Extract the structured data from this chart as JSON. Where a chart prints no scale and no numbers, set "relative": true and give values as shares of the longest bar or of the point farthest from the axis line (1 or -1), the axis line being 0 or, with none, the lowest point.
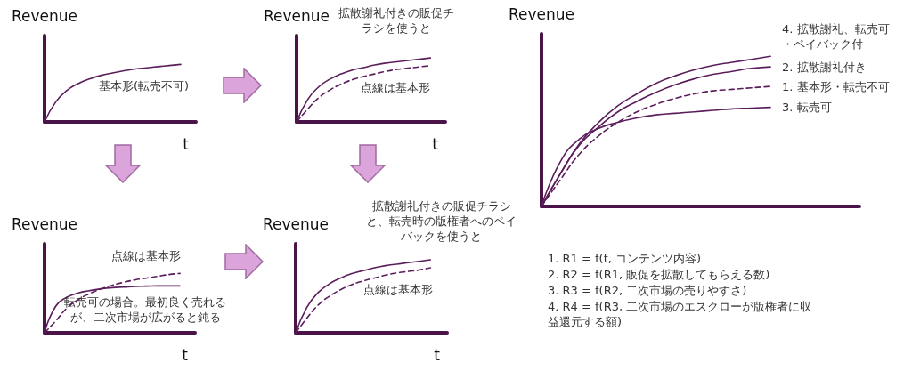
{
  "chart_data": [
    {
      "type": "line",
      "ylabel": "Revenue",
      "xlabel": "t",
      "relative": true,
      "categories": [
        null,
        null,
        null,
        null,
        null,
        null,
        null,
        null,
        null,
        null,
        null,
        null,
        null
      ],
      "series": [
        {
          "name": "基本形(転売不可)",
          "color": "#5b1e5b",
          "values": [
            0,
            0.35,
            0.55,
            0.67,
            0.75,
            0.81,
            0.85,
            0.89,
            0.92,
            0.94,
            0.96,
            0.98,
            1.0
          ]
        }
      ]
    },
    {
      "type": "line",
      "ylabel": "Revenue",
      "xlabel": "t",
      "relative": true,
      "categories": [
        null,
        null,
        null,
        null,
        null,
        null,
        null,
        null,
        null,
        null,
        null,
        null,
        null
      ],
      "annotations": [
        "拡散謝礼付きの販促チラシを使うと",
        "点線は基本形"
      ],
      "series": [
        {
          "color": "#5b1e5b",
          "values": [
            0,
            0.35,
            0.55,
            0.67,
            0.75,
            0.81,
            0.85,
            0.89,
            0.92,
            0.94,
            0.96,
            0.98,
            1.0
          ]
        },
        {
          "color": "#5b1e5b",
          "line_style": "dashed",
          "values": [
            0,
            0.2,
            0.38,
            0.5,
            0.59,
            0.66,
            0.71,
            0.75,
            0.79,
            0.82,
            0.84,
            0.86,
            0.88
          ]
        }
      ]
    },
    {
      "type": "line",
      "ylabel": "Revenue",
      "relative": true,
      "categories": [
        null,
        null,
        null,
        null,
        null,
        null,
        null,
        null,
        null,
        null,
        null,
        null,
        null
      ],
      "annotations": [
        "1.   R1 = f(t, コンテンツ内容)",
        "2.   R2 = f(R1, 販促を拡散してもらえる数)",
        "3.   R3 = f(R2, 二次市場の売りやすさ)",
        "4.   R4 = f(R3, 二次市場のエスクローが版権者に収益還元する額)"
      ],
      "series": [
        {
          "name": "4. 拡散謝礼、転売可・ペイバック付",
          "color": "#5b1e5b",
          "values": [
            0,
            0.22,
            0.42,
            0.56,
            0.67,
            0.75,
            0.82,
            0.87,
            0.91,
            0.94,
            0.96,
            0.98,
            1.0
          ]
        },
        {
          "name": "2. 拡散謝礼付き",
          "color": "#5b1e5b",
          "values": [
            0,
            0.22,
            0.41,
            0.53,
            0.63,
            0.7,
            0.76,
            0.81,
            0.85,
            0.88,
            0.9,
            0.92,
            0.93
          ]
        },
        {
          "name": "1. 基本形・転売不可",
          "color": "#5b1e5b",
          "line_style": "dashed",
          "values": [
            0,
            0.18,
            0.35,
            0.47,
            0.56,
            0.63,
            0.68,
            0.72,
            0.75,
            0.77,
            0.78,
            0.79,
            0.8
          ]
        },
        {
          "name": "3. 転売可",
          "color": "#5b1e5b",
          "values": [
            0,
            0.3,
            0.45,
            0.52,
            0.56,
            0.59,
            0.61,
            0.62,
            0.63,
            0.64,
            0.65,
            0.655,
            0.66
          ]
        }
      ]
    },
    {
      "type": "line",
      "ylabel": "Revenue",
      "xlabel": "t",
      "relative": true,
      "categories": [
        null,
        null,
        null,
        null,
        null,
        null,
        null,
        null,
        null,
        null,
        null,
        null,
        null
      ],
      "annotations": [
        "点線は基本形",
        "転売可の場合。最初良く売れるが、二次市場が広がると鈍る"
      ],
      "series": [
        {
          "color": "#5b1e5b",
          "values": [
            0,
            0.45,
            0.6,
            0.67,
            0.71,
            0.74,
            0.76,
            0.77,
            0.78,
            0.785,
            0.79,
            0.79,
            0.79
          ]
        },
        {
          "color": "#5b1e5b",
          "line_style": "dashed",
          "values": [
            0,
            0.2,
            0.42,
            0.56,
            0.66,
            0.74,
            0.8,
            0.85,
            0.89,
            0.92,
            0.95,
            0.98,
            1.0
          ]
        }
      ]
    },
    {
      "type": "line",
      "ylabel": "Revenue",
      "xlabel": "t",
      "relative": true,
      "categories": [
        null,
        null,
        null,
        null,
        null,
        null,
        null,
        null,
        null,
        null,
        null,
        null,
        null
      ],
      "annotations": [
        "拡散謝礼付きの販促チラシと、転売時の版権者へのペイバックを使うと",
        "点線は基本形"
      ],
      "series": [
        {
          "color": "#5b1e5b",
          "values": [
            0,
            0.35,
            0.55,
            0.67,
            0.75,
            0.81,
            0.85,
            0.89,
            0.92,
            0.94,
            0.96,
            0.98,
            1.0
          ]
        },
        {
          "color": "#5b1e5b",
          "line_style": "dashed",
          "values": [
            0,
            0.2,
            0.38,
            0.5,
            0.59,
            0.66,
            0.71,
            0.75,
            0.79,
            0.82,
            0.84,
            0.86,
            0.89
          ]
        }
      ]
    }
  ]
}
